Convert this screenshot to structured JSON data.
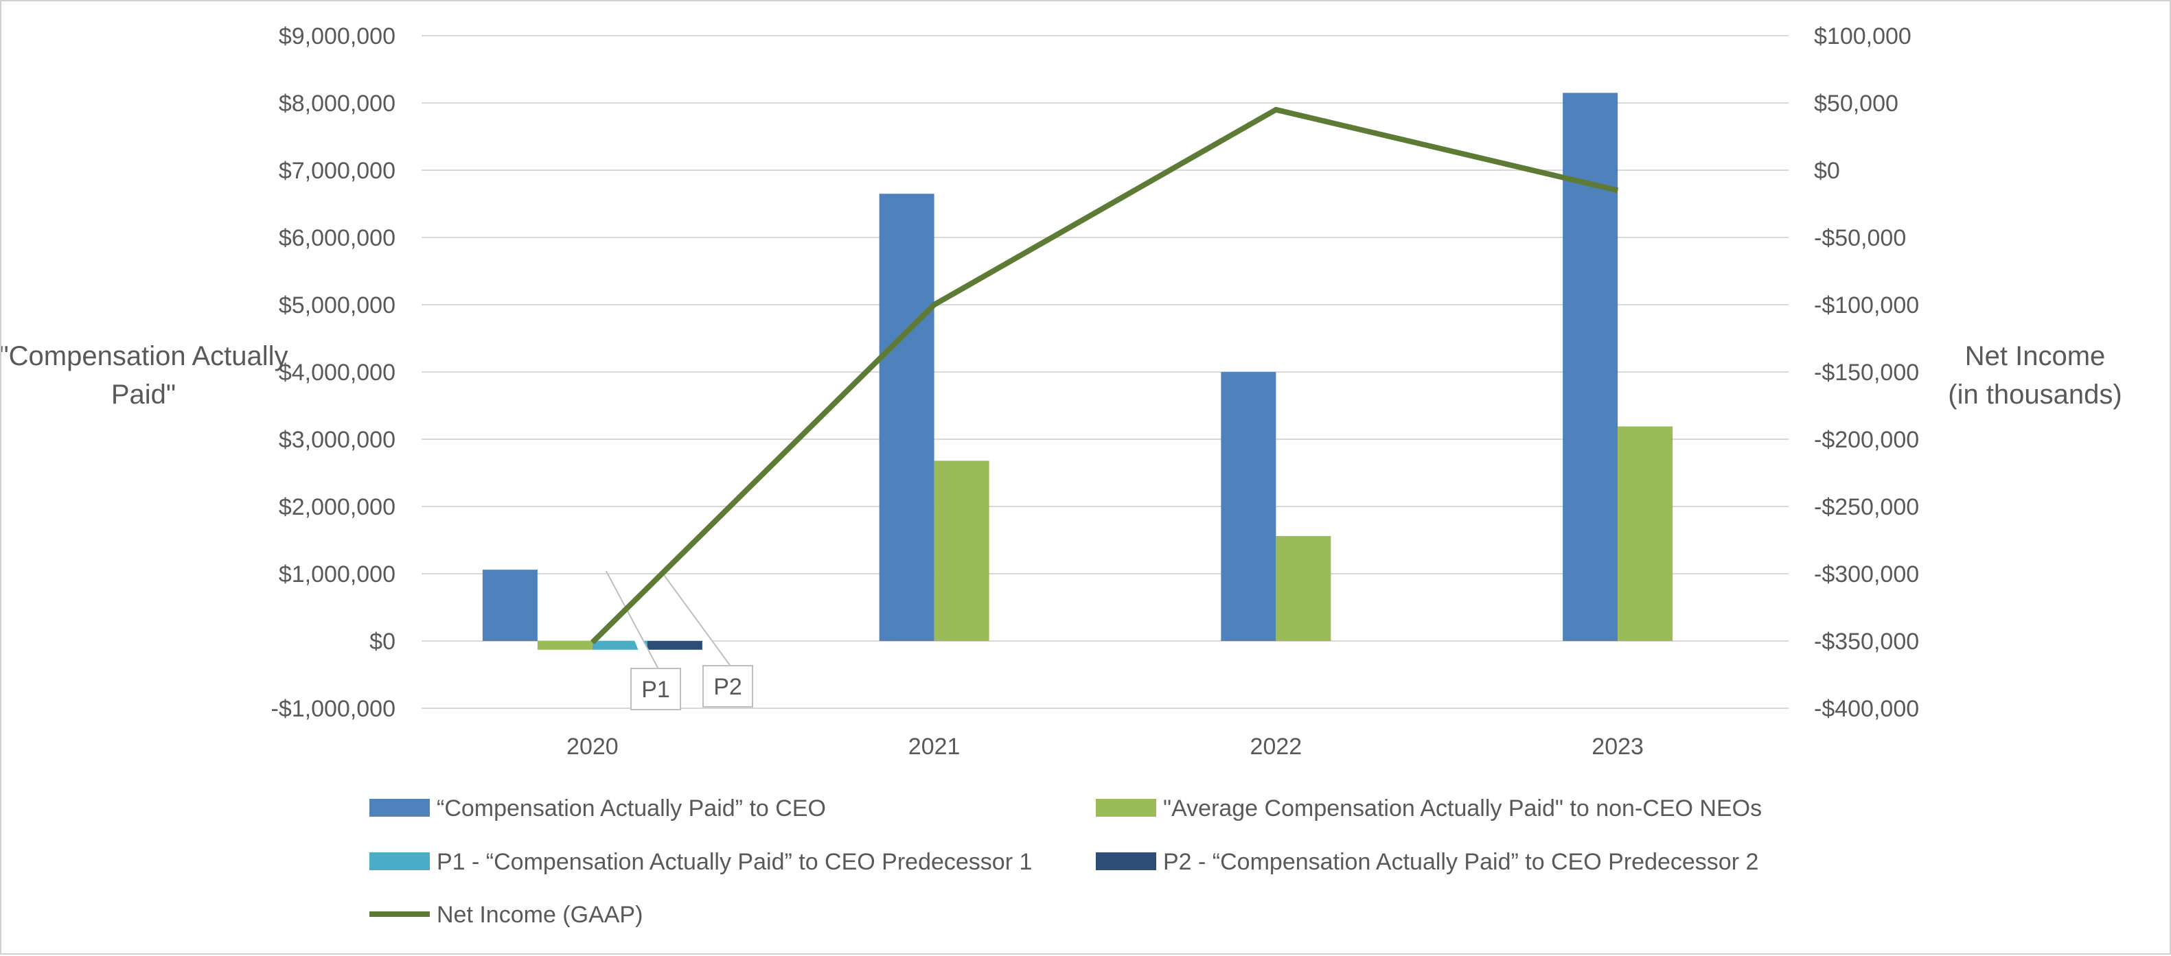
{
  "chart_data": {
    "type": "bar",
    "title": "",
    "categories": [
      "2020",
      "2021",
      "2022",
      "2023"
    ],
    "ylabel": "\"Compensation Actually Paid\"",
    "y2label": "Net Income (in thousands)",
    "ylim": [
      -1000000,
      9000000
    ],
    "y2lim": [
      -400000,
      100000
    ],
    "y_ticks": [
      {
        "value": 9000000,
        "label": "$9,000,000"
      },
      {
        "value": 8000000,
        "label": "$8,000,000"
      },
      {
        "value": 7000000,
        "label": "$7,000,000"
      },
      {
        "value": 6000000,
        "label": "$6,000,000"
      },
      {
        "value": 5000000,
        "label": "$5,000,000"
      },
      {
        "value": 4000000,
        "label": "$4,000,000"
      },
      {
        "value": 3000000,
        "label": "$3,000,000"
      },
      {
        "value": 2000000,
        "label": "$2,000,000"
      },
      {
        "value": 1000000,
        "label": "$1,000,000"
      },
      {
        "value": 0,
        "label": "$0"
      },
      {
        "value": -1000000,
        "label": "-$1,000,000"
      }
    ],
    "y2_ticks": [
      {
        "value": 100000,
        "label": "$100,000"
      },
      {
        "value": 50000,
        "label": "$50,000"
      },
      {
        "value": 0,
        "label": "$0"
      },
      {
        "value": -50000,
        "label": "-$50,000"
      },
      {
        "value": -100000,
        "label": "-$100,000"
      },
      {
        "value": -150000,
        "label": "-$150,000"
      },
      {
        "value": -200000,
        "label": "-$200,000"
      },
      {
        "value": -250000,
        "label": "-$250,000"
      },
      {
        "value": -300000,
        "label": "-$300,000"
      },
      {
        "value": -350000,
        "label": "-$350,000"
      },
      {
        "value": -400000,
        "label": "-$400,000"
      }
    ],
    "series": [
      {
        "name": "“Compensation Actually Paid” to CEO",
        "type": "bar",
        "axis": "left",
        "color": "#4F81BD",
        "values": [
          1060000,
          6650000,
          4000000,
          8150000
        ]
      },
      {
        "name": "\"Average Compensation Actually Paid\" to non-CEO NEOs",
        "type": "bar",
        "axis": "left",
        "color": "#9BBB59",
        "values": [
          -130000,
          2680000,
          1560000,
          3190000
        ]
      },
      {
        "name": "P1 - “Compensation Actually Paid” to CEO Predecessor 1",
        "type": "bar",
        "axis": "left",
        "color": "#4BACC6",
        "values": [
          -130000,
          null,
          null,
          null
        ]
      },
      {
        "name": "P2 - “Compensation Actually Paid” to CEO Predecessor 2",
        "type": "bar",
        "axis": "left",
        "color": "#2C4D75",
        "values": [
          -130000,
          null,
          null,
          null
        ]
      },
      {
        "name": "Net Income (GAAP)",
        "type": "line",
        "axis": "right",
        "color": "#5E7B35",
        "values": [
          -351000,
          -100000,
          45000,
          -15000
        ]
      }
    ],
    "callouts": [
      "P1",
      "P2"
    ],
    "legend_position": "bottom",
    "grid": true
  }
}
